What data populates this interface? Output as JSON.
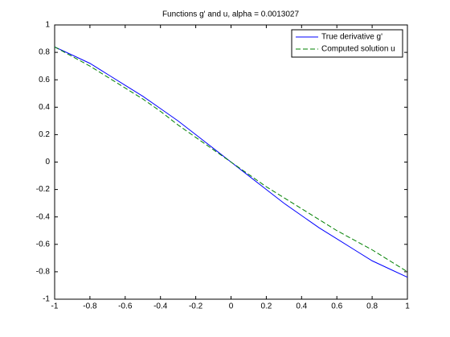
{
  "chart_data": {
    "type": "line",
    "title": "Functions g' and u, alpha = 0.0013027",
    "x": [
      -1,
      -0.9,
      -0.8,
      -0.7,
      -0.6,
      -0.5,
      -0.4,
      -0.3,
      -0.2,
      -0.1,
      0,
      0.1,
      0.2,
      0.3,
      0.4,
      0.5,
      0.6,
      0.7,
      0.8,
      0.9,
      1
    ],
    "series": [
      {
        "name": "True derivative g'",
        "color": "#0000ff",
        "dash": "solid",
        "values": [
          0.84,
          0.78,
          0.72,
          0.64,
          0.56,
          0.48,
          0.39,
          0.3,
          0.2,
          0.1,
          0,
          -0.1,
          -0.2,
          -0.3,
          -0.39,
          -0.48,
          -0.56,
          -0.64,
          -0.72,
          -0.78,
          -0.84
        ]
      },
      {
        "name": "Computed solution u",
        "color": "#008000",
        "dash": "dashed",
        "values": [
          0.84,
          0.77,
          0.7,
          0.62,
          0.54,
          0.46,
          0.37,
          0.27,
          0.18,
          0.09,
          0,
          -0.09,
          -0.18,
          -0.26,
          -0.34,
          -0.42,
          -0.5,
          -0.57,
          -0.64,
          -0.72,
          -0.8
        ]
      }
    ],
    "xlim": [
      -1,
      1
    ],
    "xticks": [
      -1,
      -0.8,
      -0.6,
      -0.4,
      -0.2,
      0,
      0.2,
      0.4,
      0.6,
      0.8,
      1
    ],
    "ylim": [
      -1,
      1
    ],
    "yticks": [
      -1,
      -0.8,
      -0.6,
      -0.4,
      -0.2,
      0,
      0.2,
      0.4,
      0.6,
      0.8,
      1
    ],
    "grid": false,
    "legend": "upper-right"
  }
}
